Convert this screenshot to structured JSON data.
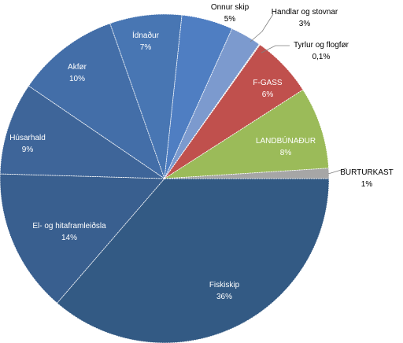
{
  "chart_data": {
    "type": "pie",
    "title": "",
    "slices": [
      {
        "label": "Fiskiskip",
        "value": 36,
        "pct_label": "36%",
        "color": "#335a84"
      },
      {
        "label": "El- og hitaframleiðsla",
        "value": 14,
        "pct_label": "14%",
        "color": "#395f8f"
      },
      {
        "label": "Húsarhald",
        "value": 9,
        "pct_label": "9%",
        "color": "#3e6599"
      },
      {
        "label": "Akfør",
        "value": 10,
        "pct_label": "10%",
        "color": "#436ea8"
      },
      {
        "label": "Ídnaður",
        "value": 7,
        "pct_label": "7%",
        "color": "#4876b3"
      },
      {
        "label": "Onnur skip",
        "value": 5,
        "pct_label": "5%",
        "color": "#4f7ec2"
      },
      {
        "label": "Handlar og stovnar",
        "value": 3,
        "pct_label": "3%",
        "color": "#7c9ace"
      },
      {
        "label": "Tyrlur og flogfør",
        "value": 0.1,
        "pct_label": "0,1%",
        "color": "#d9d9d9"
      },
      {
        "label": "F-GASS",
        "value": 6,
        "pct_label": "6%",
        "color": "#c0504d"
      },
      {
        "label": "LANDBÚNAÐUR",
        "value": 8,
        "pct_label": "8%",
        "color": "#9bbb59"
      },
      {
        "label": "BURTURKAST",
        "value": 1,
        "pct_label": "1%",
        "color": "#a6a6a6"
      }
    ]
  }
}
